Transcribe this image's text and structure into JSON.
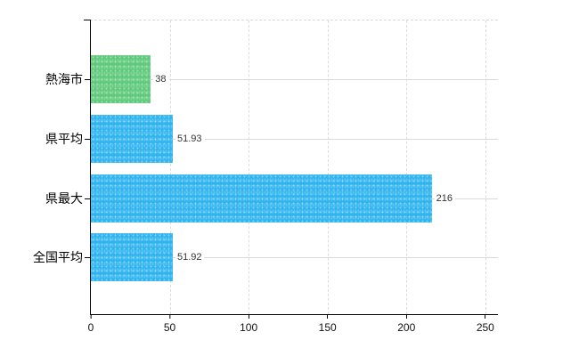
{
  "chart": {
    "background_color": "#ffffff",
    "axis_color": "#000000",
    "vertical_grid_color": "#dcdcdc",
    "row_line_color": "#d5dcd5",
    "highlight_bar_color": "#5fc97c",
    "default_bar_color": "#30b4ef"
  },
  "chart_data": {
    "type": "bar",
    "orientation": "horizontal",
    "title": "",
    "xlabel": "",
    "ylabel": "",
    "categories": [
      "熱海市",
      "県平均",
      "県最大",
      "全国平均"
    ],
    "values": [
      38,
      51.93,
      216,
      51.92
    ],
    "value_labels": [
      "38",
      "51.93",
      "216",
      "51.92"
    ],
    "bar_colors": [
      "#5fc97c",
      "#30b4ef",
      "#30b4ef",
      "#30b4ef"
    ],
    "xlim": [
      0,
      258
    ],
    "x_ticks": [
      0,
      50,
      100,
      150,
      200,
      250
    ],
    "x_tick_labels": [
      "0",
      "50",
      "100",
      "150",
      "200",
      "250"
    ],
    "grid": true,
    "legend": false
  }
}
